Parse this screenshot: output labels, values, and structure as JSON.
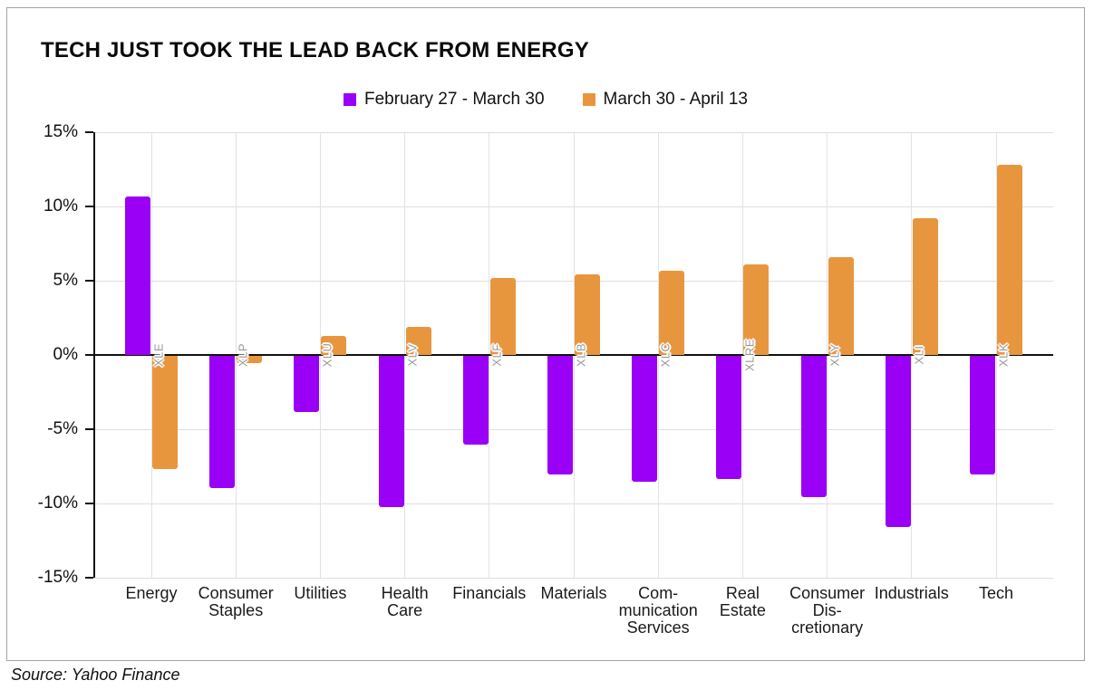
{
  "title": "TECH JUST TOOK THE LEAD BACK FROM ENERGY",
  "source_note": "Source: Yahoo Finance",
  "colors": {
    "series1": "#9900F5",
    "series2": "#E8963D",
    "gridline": "#DEDEDE",
    "axis": "#111111",
    "ticker_text": "#999999",
    "figure_border": "#A3A3A3",
    "background": "#FFFFFF",
    "text": "#111111"
  },
  "chart_data": {
    "type": "bar",
    "title": "TECH JUST TOOK THE LEAD BACK FROM ENERGY",
    "categories": [
      "Energy",
      "Consumer Staples",
      "Utilities",
      "Health Care",
      "Financials",
      "Materials",
      "Communication Services",
      "Real Estate",
      "Consumer Discretionary",
      "Industrials",
      "Tech"
    ],
    "category_label_lines": [
      [
        "Energy"
      ],
      [
        "Consumer",
        "Staples"
      ],
      [
        "Utilities"
      ],
      [
        "Health",
        "Care"
      ],
      [
        "Financials"
      ],
      [
        "Materials"
      ],
      [
        "Com-",
        "munication",
        "Services"
      ],
      [
        "Real",
        "Estate"
      ],
      [
        "Consumer",
        "Dis-",
        "cretionary"
      ],
      [
        "Industrials"
      ],
      [
        "Tech"
      ]
    ],
    "tickers": [
      "XLE",
      "XLP",
      "XLU",
      "XLV",
      "XLF",
      "XLB",
      "XLC",
      "XLRE",
      "XLY",
      "XLI",
      "XLK"
    ],
    "series": [
      {
        "name": "February 27 - March 30",
        "color": "#9900F5",
        "values": [
          10.7,
          -8.9,
          -3.8,
          -10.2,
          -6.0,
          -8.0,
          -8.5,
          -8.3,
          -9.5,
          -11.5,
          -8.0
        ]
      },
      {
        "name": "March 30 - April 13",
        "color": "#E8963D",
        "values": [
          -7.6,
          -0.5,
          1.3,
          1.9,
          5.2,
          5.4,
          5.7,
          6.1,
          6.6,
          9.2,
          12.8
        ]
      }
    ],
    "xlabel": "",
    "ylabel": "",
    "ylim": [
      -15,
      15
    ],
    "ytick_step": 5,
    "ytick_labels": [
      "15%",
      "10%",
      "5%",
      "0%",
      "-5%",
      "-10%",
      "-15%"
    ],
    "grid": true,
    "legend_position": "top-center"
  }
}
